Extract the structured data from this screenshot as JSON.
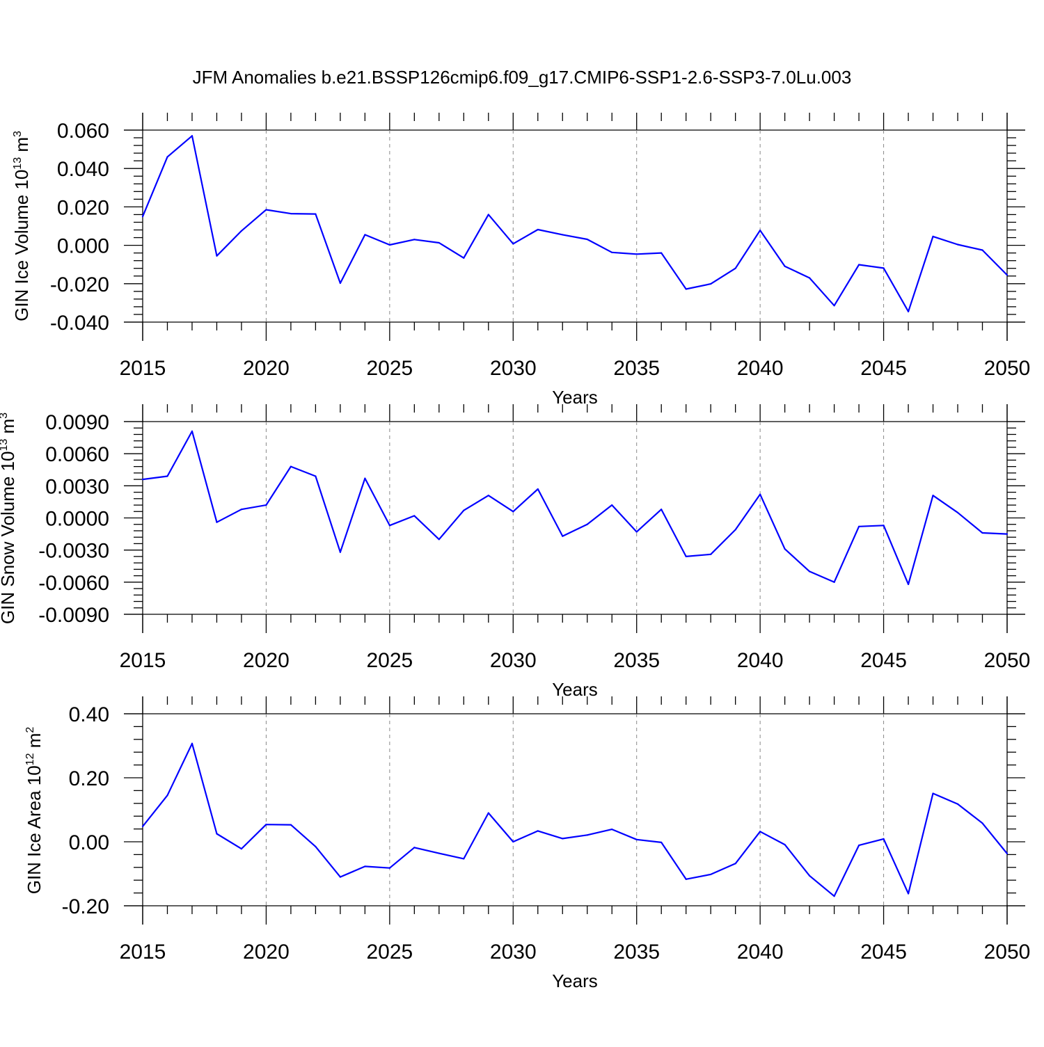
{
  "title": "JFM Anomalies b.e21.BSSP126cmip6.f09_g17.CMIP6-SSP1-2.6-SSP3-7.0Lu.003",
  "colors": {
    "line": "#0000ff",
    "axis": "#000000",
    "grid": "#888888",
    "background": "#ffffff"
  },
  "chart_data": [
    {
      "type": "line",
      "ylabel": "GIN Ice Volume 10",
      "ylabel_exp": "13",
      "ylabel_unit": " m",
      "ylabel_unit_exp": "3",
      "xlabel": "Years",
      "xlim": [
        2015,
        2050
      ],
      "ylim": [
        -0.04,
        0.06
      ],
      "yticks": [
        -0.04,
        -0.02,
        0.0,
        0.02,
        0.04,
        0.06
      ],
      "ytick_labels": [
        "-0.040",
        "-0.020",
        "0.000",
        "0.020",
        "0.040",
        "0.060"
      ],
      "xticks": [
        2015,
        2020,
        2025,
        2030,
        2035,
        2040,
        2045,
        2050
      ],
      "xtick_labels": [
        "2015",
        "2020",
        "2025",
        "2030",
        "2035",
        "2040",
        "2045",
        "2050"
      ],
      "grid": "vertical dashed at major x ticks",
      "series": [
        {
          "name": "GIN Ice Volume",
          "x": [
            2015,
            2016,
            2017,
            2018,
            2019,
            2020,
            2021,
            2022,
            2023,
            2024,
            2025,
            2026,
            2027,
            2028,
            2029,
            2030,
            2031,
            2032,
            2033,
            2034,
            2035,
            2036,
            2037,
            2038,
            2039,
            2040,
            2041,
            2042,
            2043,
            2044,
            2045,
            2046,
            2047,
            2048,
            2049,
            2050
          ],
          "values": [
            0.015,
            0.046,
            0.057,
            -0.0055,
            0.0075,
            0.0185,
            0.0165,
            0.0163,
            -0.0197,
            0.0055,
            0.0002,
            0.003,
            0.0013,
            -0.0066,
            0.016,
            0.0008,
            0.0082,
            0.0055,
            0.0031,
            -0.0037,
            -0.0046,
            -0.004,
            -0.0228,
            -0.0201,
            -0.012,
            0.0078,
            -0.0109,
            -0.017,
            -0.0314,
            -0.0101,
            -0.0119,
            -0.0345,
            0.0046,
            0.0004,
            -0.0025,
            -0.0155
          ]
        }
      ]
    },
    {
      "type": "line",
      "ylabel": "GIN Snow Volume 10",
      "ylabel_exp": "13",
      "ylabel_unit": " m",
      "ylabel_unit_exp": "3",
      "xlabel": "Years",
      "xlim": [
        2015,
        2050
      ],
      "ylim": [
        -0.009,
        0.009
      ],
      "yticks": [
        -0.009,
        -0.006,
        -0.003,
        0.0,
        0.003,
        0.006,
        0.009
      ],
      "ytick_labels": [
        "-0.0090",
        "-0.0060",
        "-0.0030",
        "0.0000",
        "0.0030",
        "0.0060",
        "0.0090"
      ],
      "xticks": [
        2015,
        2020,
        2025,
        2030,
        2035,
        2040,
        2045,
        2050
      ],
      "xtick_labels": [
        "2015",
        "2020",
        "2025",
        "2030",
        "2035",
        "2040",
        "2045",
        "2050"
      ],
      "grid": "vertical dashed at major x ticks",
      "series": [
        {
          "name": "GIN Snow Volume",
          "x": [
            2015,
            2016,
            2017,
            2018,
            2019,
            2020,
            2021,
            2022,
            2023,
            2024,
            2025,
            2026,
            2027,
            2028,
            2029,
            2030,
            2031,
            2032,
            2033,
            2034,
            2035,
            2036,
            2037,
            2038,
            2039,
            2040,
            2041,
            2042,
            2043,
            2044,
            2045,
            2046,
            2047,
            2048,
            2049,
            2050
          ],
          "values": [
            0.0036,
            0.0039,
            0.0081,
            -0.0004,
            0.0008,
            0.0012,
            0.0048,
            0.0039,
            -0.0032,
            0.0037,
            -0.0007,
            0.0002,
            -0.002,
            0.0007,
            0.0021,
            0.0006,
            0.0027,
            -0.0017,
            -0.0006,
            0.0012,
            -0.0013,
            0.0008,
            -0.0036,
            -0.0034,
            -0.0011,
            0.0022,
            -0.0029,
            -0.005,
            -0.006,
            -0.0008,
            -0.0007,
            -0.0062,
            0.0021,
            0.0005,
            -0.0014,
            -0.0015
          ]
        }
      ]
    },
    {
      "type": "line",
      "ylabel": "GIN Ice Area 10",
      "ylabel_exp": "12",
      "ylabel_unit": " m",
      "ylabel_unit_exp": "2",
      "xlabel": "Years",
      "xlim": [
        2015,
        2050
      ],
      "ylim": [
        -0.2,
        0.4
      ],
      "yticks": [
        -0.2,
        0.0,
        0.2,
        0.4
      ],
      "ytick_labels": [
        "-0.20",
        "0.00",
        "0.20",
        "0.40"
      ],
      "xticks": [
        2015,
        2020,
        2025,
        2030,
        2035,
        2040,
        2045,
        2050
      ],
      "xtick_labels": [
        "2015",
        "2020",
        "2025",
        "2030",
        "2035",
        "2040",
        "2045",
        "2050"
      ],
      "grid": "vertical dashed at major x ticks",
      "series": [
        {
          "name": "GIN Ice Area",
          "x": [
            2015,
            2016,
            2017,
            2018,
            2019,
            2020,
            2021,
            2022,
            2023,
            2024,
            2025,
            2026,
            2027,
            2028,
            2029,
            2030,
            2031,
            2032,
            2033,
            2034,
            2035,
            2036,
            2037,
            2038,
            2039,
            2040,
            2041,
            2042,
            2043,
            2044,
            2045,
            2046,
            2047,
            2048,
            2049,
            2050
          ],
          "values": [
            0.048,
            0.145,
            0.307,
            0.025,
            -0.022,
            0.054,
            0.053,
            -0.015,
            -0.11,
            -0.077,
            -0.082,
            -0.018,
            -0.036,
            -0.053,
            0.09,
            0.0,
            0.034,
            0.01,
            0.021,
            0.039,
            0.007,
            -0.002,
            -0.117,
            -0.102,
            -0.068,
            0.032,
            -0.009,
            -0.106,
            -0.17,
            -0.011,
            0.009,
            -0.162,
            0.151,
            0.118,
            0.058,
            -0.037
          ]
        }
      ]
    }
  ]
}
